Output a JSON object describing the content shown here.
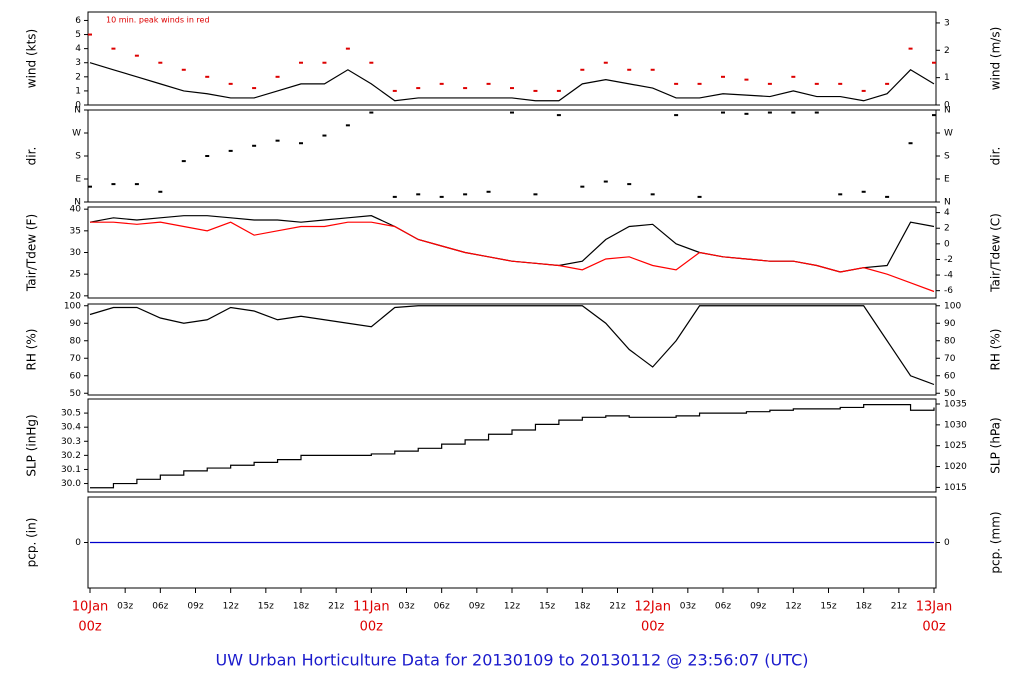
{
  "chart_data": {
    "type": "line",
    "title": "UW Urban Horticulture Data for 20130109  to  20130112 @ 23:56:07  (UTC)",
    "x": [
      0,
      2,
      4,
      6,
      8,
      10,
      12,
      14,
      16,
      18,
      20,
      22,
      24,
      26,
      28,
      30,
      32,
      34,
      36,
      38,
      40,
      42,
      44,
      46,
      48,
      50,
      52,
      54,
      56,
      58,
      60,
      62,
      64,
      66,
      68,
      70,
      72
    ],
    "xlim": [
      0,
      72
    ],
    "xticks": [
      {
        "value": 0,
        "label": "00z"
      },
      {
        "value": 3,
        "label": "03z"
      },
      {
        "value": 6,
        "label": "06z"
      },
      {
        "value": 9,
        "label": "09z"
      },
      {
        "value": 12,
        "label": "12z"
      },
      {
        "value": 15,
        "label": "15z"
      },
      {
        "value": 18,
        "label": "18z"
      },
      {
        "value": 21,
        "label": "21z"
      },
      {
        "value": 24,
        "label": "00z"
      },
      {
        "value": 27,
        "label": "03z"
      },
      {
        "value": 30,
        "label": "06z"
      },
      {
        "value": 33,
        "label": "09z"
      },
      {
        "value": 36,
        "label": "12z"
      },
      {
        "value": 39,
        "label": "15z"
      },
      {
        "value": 42,
        "label": "18z"
      },
      {
        "value": 45,
        "label": "21z"
      },
      {
        "value": 48,
        "label": "00z"
      },
      {
        "value": 51,
        "label": "03z"
      },
      {
        "value": 54,
        "label": "06z"
      },
      {
        "value": 57,
        "label": "09z"
      },
      {
        "value": 60,
        "label": "12z"
      },
      {
        "value": 63,
        "label": "15z"
      },
      {
        "value": 66,
        "label": "18z"
      },
      {
        "value": 69,
        "label": "21z"
      },
      {
        "value": 72,
        "label": "00z"
      }
    ],
    "date_ticks": [
      {
        "value": 0,
        "label": "10Jan"
      },
      {
        "value": 24,
        "label": "11Jan"
      },
      {
        "value": 48,
        "label": "12Jan"
      },
      {
        "value": 72,
        "label": "13Jan"
      }
    ],
    "date_color": "#dd0000",
    "panels": [
      {
        "label": "wind (kts)",
        "right_label": "wind (m/s)",
        "annotation": "10 min. peak winds in red",
        "annotation_color": "#dd0000",
        "ylim": [
          0,
          6.6
        ],
        "yticks": [
          0,
          1,
          2,
          3,
          4,
          5,
          6
        ],
        "y2lim": [
          0,
          3.4
        ],
        "y2ticks": [
          0,
          1,
          2,
          3
        ],
        "series": [
          {
            "color": "#000000",
            "style": "line",
            "values": [
              3,
              2.5,
              2,
              1.5,
              1,
              0.8,
              0.5,
              0.5,
              1,
              1.5,
              1.5,
              2.5,
              1.5,
              0.3,
              0.5,
              0.5,
              0.5,
              0.5,
              0.5,
              0.3,
              0.3,
              1.5,
              1.8,
              1.5,
              1.2,
              0.5,
              0.5,
              0.8,
              0.7,
              0.6,
              1,
              0.6,
              0.6,
              0.3,
              0.8,
              2.5,
              1.5
            ]
          },
          {
            "color": "#dd0000",
            "style": "dots",
            "values": [
              5,
              4,
              3.5,
              3,
              2.5,
              2,
              1.5,
              1.2,
              2,
              3,
              3,
              4,
              3,
              1,
              1.2,
              1.5,
              1.2,
              1.5,
              1.2,
              1,
              1,
              2.5,
              3,
              2.5,
              2.5,
              1.5,
              1.5,
              2,
              1.8,
              1.5,
              2,
              1.5,
              1.5,
              1,
              1.5,
              4,
              3
            ]
          }
        ]
      },
      {
        "label": "dir.",
        "right_label": "dir.",
        "ylim": [
          0,
          360
        ],
        "yticks": [
          {
            "value": 0,
            "label": "N"
          },
          {
            "value": 90,
            "label": "E"
          },
          {
            "value": 180,
            "label": "S"
          },
          {
            "value": 270,
            "label": "W"
          },
          {
            "value": 360,
            "label": "N"
          }
        ],
        "y2lim": [
          0,
          360
        ],
        "y2ticks": [
          {
            "value": 0,
            "label": "N"
          },
          {
            "value": 90,
            "label": "E"
          },
          {
            "value": 180,
            "label": "S"
          },
          {
            "value": 270,
            "label": "W"
          },
          {
            "value": 360,
            "label": "N"
          }
        ],
        "series": [
          {
            "color": "#000000",
            "style": "dots",
            "values": [
              60,
              70,
              70,
              40,
              160,
              180,
              200,
              220,
              240,
              230,
              260,
              300,
              350,
              20,
              30,
              20,
              30,
              40,
              350,
              30,
              340,
              60,
              80,
              70,
              30,
              340,
              20,
              350,
              345,
              350,
              350,
              350,
              30,
              40,
              20,
              230,
              340
            ]
          }
        ]
      },
      {
        "label": "Tair/Tdew (F)",
        "right_label": "Tair/Tdew (C)",
        "ylim": [
          19.5,
          40.5
        ],
        "yticks": [
          20,
          25,
          30,
          35,
          40
        ],
        "y2lim": [
          -6.94,
          4.72
        ],
        "y2ticks": [
          -6,
          -4,
          -2,
          0,
          2,
          4
        ],
        "series": [
          {
            "color": "#000000",
            "style": "line",
            "values": [
              37,
              38,
              37.5,
              38,
              38.5,
              38.5,
              38,
              37.5,
              37.5,
              37,
              37.5,
              38,
              38.5,
              36,
              33,
              31.5,
              30,
              29,
              28,
              27.5,
              27,
              28,
              33,
              36,
              36.5,
              32,
              30,
              29,
              28.5,
              28,
              28,
              27,
              25.5,
              26.5,
              27,
              37,
              36
            ]
          },
          {
            "color": "#ff0000",
            "style": "line",
            "values": [
              37,
              37,
              36.5,
              37,
              36,
              35,
              37,
              34,
              35,
              36,
              36,
              37,
              37,
              36,
              33,
              31.5,
              30,
              29,
              28,
              27.5,
              27,
              26,
              28.5,
              29,
              27,
              26,
              30,
              29,
              28.5,
              28,
              28,
              27,
              25.5,
              26.5,
              25,
              23,
              21
            ]
          }
        ]
      },
      {
        "label": "RH (%)",
        "right_label": "RH (%)",
        "ylim": [
          49,
          101
        ],
        "yticks": [
          50,
          60,
          70,
          80,
          90,
          100
        ],
        "y2lim": [
          49,
          101
        ],
        "y2ticks": [
          50,
          60,
          70,
          80,
          90,
          100
        ],
        "series": [
          {
            "color": "#000000",
            "style": "line",
            "values": [
              95,
              99,
              99,
              93,
              90,
              92,
              99,
              97,
              92,
              94,
              92,
              90,
              88,
              99,
              100,
              100,
              100,
              100,
              100,
              100,
              100,
              100,
              90,
              75,
              65,
              80,
              100,
              100,
              100,
              100,
              100,
              100,
              100,
              100,
              80,
              60,
              55
            ]
          }
        ]
      },
      {
        "label": "SLP (inHg)",
        "right_label": "SLP (hPa)",
        "ylim": [
          29.94,
          30.6
        ],
        "yticks": [
          {
            "value": 30,
            "label": "30.0"
          },
          30.1,
          30.2,
          30.3,
          30.4,
          30.5
        ],
        "y2lim": [
          1013.9,
          1036.2
        ],
        "y2ticks": [
          1015,
          1020,
          1025,
          1030,
          1035
        ],
        "series": [
          {
            "color": "#000000",
            "style": "step",
            "values": [
              29.97,
              30.0,
              30.03,
              30.06,
              30.09,
              30.11,
              30.13,
              30.15,
              30.17,
              30.2,
              30.2,
              30.2,
              30.21,
              30.23,
              30.25,
              30.28,
              30.31,
              30.35,
              30.38,
              30.42,
              30.45,
              30.47,
              30.48,
              30.47,
              30.47,
              30.48,
              30.5,
              30.5,
              30.51,
              30.52,
              30.53,
              30.53,
              30.54,
              30.56,
              30.56,
              30.52,
              30.54
            ]
          }
        ]
      },
      {
        "label": "pcp. (in)",
        "right_label": "pcp. (mm)",
        "ylim": [
          -1,
          1
        ],
        "yticks": [
          0
        ],
        "y2lim": [
          -1,
          1
        ],
        "y2ticks": [
          0
        ],
        "series": [
          {
            "color": "#0000cc",
            "style": "line",
            "values": [
              0,
              0,
              0,
              0,
              0,
              0,
              0,
              0,
              0,
              0,
              0,
              0,
              0,
              0,
              0,
              0,
              0,
              0,
              0,
              0,
              0,
              0,
              0,
              0,
              0,
              0,
              0,
              0,
              0,
              0,
              0,
              0,
              0,
              0,
              0,
              0,
              0
            ]
          }
        ]
      }
    ]
  }
}
